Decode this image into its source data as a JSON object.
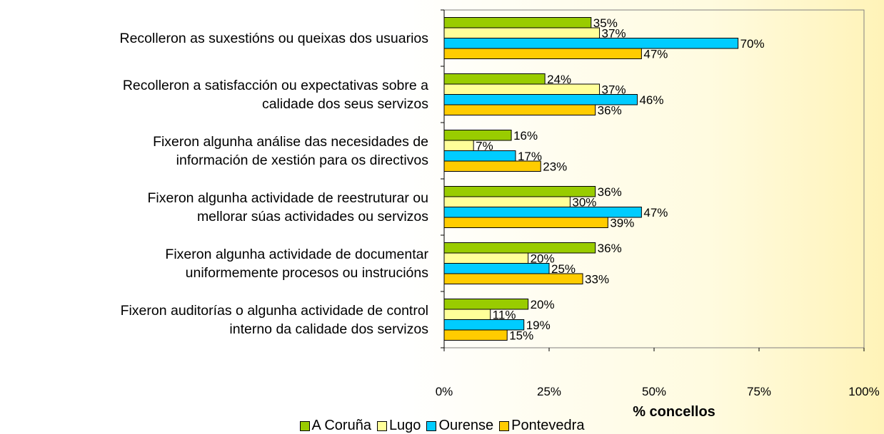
{
  "chart_data": {
    "type": "bar",
    "orientation": "horizontal",
    "x_label": "% concellos",
    "categories": [
      "Recolleron as suxestións ou queixas dos usuarios",
      "Recolleron a satisfacción ou expectativas sobre a\ncalidade dos seus servizos",
      "Fixeron algunha análise das necesidades de\ninformación de xestión para os directivos",
      "Fixeron algunha actividade de reestruturar ou\nmellorar súas actividades ou servizos",
      "Fixeron algunha actividade de documentar\nuniformemente procesos ou instrucións",
      "Fixeron auditorías o algunha actividade de control\ninterno da calidade dos servizos"
    ],
    "series": [
      {
        "name": "A Coruña",
        "color": "#99cc00",
        "values": [
          35,
          24,
          16,
          36,
          36,
          20
        ],
        "value_labels": [
          "35%",
          "24%",
          "16%",
          "36%",
          "36%",
          "20%"
        ]
      },
      {
        "name": "Lugo",
        "color": "#ffff99",
        "values": [
          37,
          37,
          7,
          30,
          20,
          11
        ],
        "value_labels": [
          "37%",
          "37%",
          "7%",
          "30%",
          "20%",
          "11%"
        ]
      },
      {
        "name": "Ourense",
        "color": "#00ccff",
        "values": [
          70,
          46,
          17,
          47,
          25,
          19
        ],
        "value_labels": [
          "70%",
          "46%",
          "17%",
          "47%",
          "25%",
          "19%"
        ]
      },
      {
        "name": "Pontevedra",
        "color": "#ffcc00",
        "values": [
          47,
          36,
          23,
          39,
          33,
          15
        ],
        "value_labels": [
          "47%",
          "36%",
          "23%",
          "39%",
          "33%",
          "15%"
        ]
      }
    ],
    "xlim": [
      0,
      100
    ],
    "xticks": [
      {
        "value": 0,
        "label": "0%"
      },
      {
        "value": 25,
        "label": "25%"
      },
      {
        "value": 50,
        "label": "50%"
      },
      {
        "value": 75,
        "label": "75%"
      },
      {
        "value": 100,
        "label": "100%"
      }
    ],
    "grid": false,
    "legend": "bottom"
  }
}
